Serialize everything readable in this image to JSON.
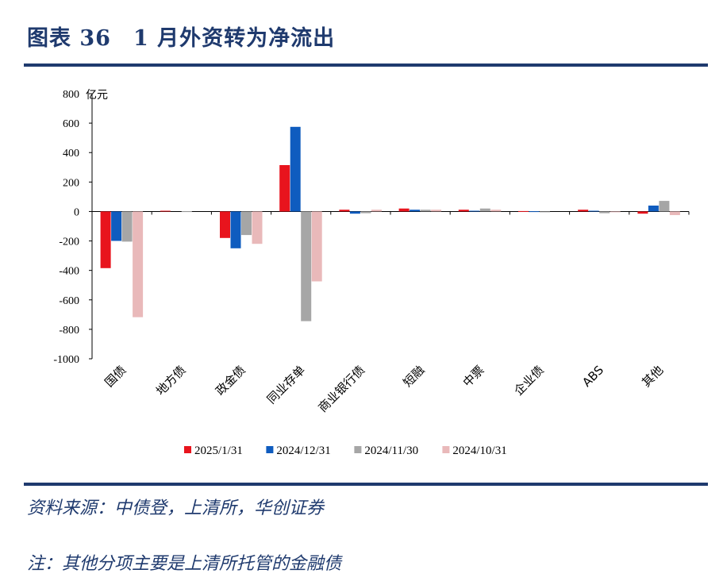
{
  "header": {
    "title": "图表 36　1 月外资转为净流出"
  },
  "footer": {
    "source": "资料来源：中债登，上清所，华创证券",
    "note": "注：其他分项主要是上清所托管的金融债"
  },
  "colors": {
    "series": [
      "#e8141d",
      "#0f5cbf",
      "#a6a6a6",
      "#e9b9ba"
    ],
    "rule": "#1f3a6e"
  },
  "chart_data": {
    "type": "bar",
    "title": "",
    "xlabel": "",
    "ylabel": "亿元",
    "ylim": [
      -1000,
      800
    ],
    "yticks": [
      800,
      600,
      400,
      200,
      0,
      -200,
      -400,
      -600,
      -800,
      -1000
    ],
    "yticklabels": [
      "800",
      "600",
      "400",
      "200",
      "0",
      "-200",
      "-400",
      "-600",
      "-800",
      "-1000"
    ],
    "categories": [
      "国债",
      "地方债",
      "政金债",
      "同业存单",
      "商业银行债",
      "短融",
      "中票",
      "企业债",
      "ABS",
      "其他"
    ],
    "legend_position": "bottom",
    "series": [
      {
        "name": "2025/1/31",
        "values": [
          -385,
          5,
          -180,
          315,
          12,
          20,
          12,
          3,
          12,
          -15
        ]
      },
      {
        "name": "2024/12/31",
        "values": [
          -200,
          0,
          -250,
          575,
          -15,
          12,
          5,
          2,
          5,
          40
        ]
      },
      {
        "name": "2024/11/30",
        "values": [
          -205,
          2,
          -160,
          -745,
          -12,
          12,
          20,
          -3,
          -12,
          72
        ]
      },
      {
        "name": "2024/10/31",
        "values": [
          -718,
          0,
          -220,
          -475,
          12,
          12,
          12,
          0,
          -5,
          -25
        ]
      }
    ]
  }
}
